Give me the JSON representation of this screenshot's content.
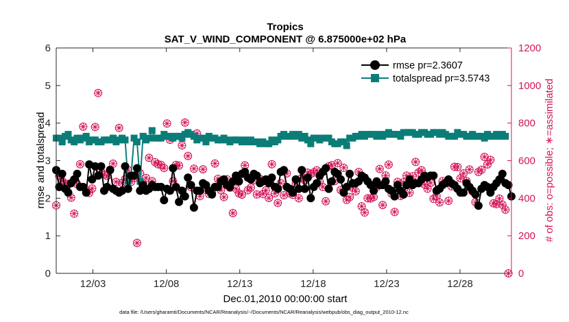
{
  "chart_data": {
    "type": "line",
    "title": "Tropics",
    "subtitle": "SAT_V_WIND_COMPONENT @ 6.875000e+02 hPa",
    "xlabel": "Dec.01,2010 00:00:00 start",
    "ylabel_left": "rmse and totalspread",
    "ylabel_right": "# of obs: o=possible; ∗=assimilated",
    "footer": "data file: /Users/gharamti/Documents/NCAR/Reanalysis/~/Documents/NCAR/Reanalysis/webpub/obs_diag_output_2010-12.nc",
    "xlim": [
      0,
      31
    ],
    "ylim_left": [
      0,
      6
    ],
    "ylim_right": [
      0,
      1200
    ],
    "x_ticks": [
      2.5,
      7.5,
      12.5,
      17.5,
      22.5,
      27.5
    ],
    "x_tick_labels": [
      "12/03",
      "12/08",
      "12/13",
      "12/18",
      "12/23",
      "12/28"
    ],
    "y_left_ticks": [
      "0",
      "1",
      "2",
      "3",
      "4",
      "5",
      "6"
    ],
    "y_right_ticks": [
      "0",
      "200",
      "400",
      "600",
      "800",
      "1000",
      "1200"
    ],
    "colors": {
      "rmse": "#000000",
      "spread": "#0b7d78",
      "obs": "#d4145a"
    },
    "legend": [
      {
        "name": "rmse pr=2.3607",
        "series": "rmse"
      },
      {
        "name": "totalspread pr=3.5743",
        "series": "spread"
      }
    ],
    "series": [
      {
        "name": "rmse",
        "values": [
          2.75,
          2.3,
          2.65,
          2.25,
          2.15,
          2.4,
          2.5,
          2.65,
          2.3,
          2.3,
          2.15,
          2.9,
          2.5,
          2.85,
          2.6,
          2.85,
          2.2,
          2.3,
          2.75,
          2.25,
          2.2,
          2.15,
          2.2,
          2.85,
          2.25,
          2.6,
          2.6,
          2.8,
          2.2,
          2.35,
          2.2,
          2.25,
          2.35,
          2.3,
          2.3,
          2.3,
          1.95,
          2.25,
          2.2,
          2.8,
          2.3,
          1.9,
          2.2,
          2.05,
          2.55,
          2.35,
          1.75,
          2.2,
          2.2,
          2.4,
          2.35,
          2.2,
          2.1,
          2.3,
          2.3,
          2.45,
          2.5,
          2.35,
          2.3,
          2.45,
          2.6,
          2.45,
          2.65,
          2.7,
          2.55,
          2.5,
          2.65,
          2.6,
          2.4,
          2.45,
          2.5,
          2.4,
          2.55,
          2.3,
          2.25,
          2.7,
          2.75,
          2.3,
          2.25,
          2.15,
          2.5,
          2.25,
          2.75,
          2.25,
          2.55,
          2.0,
          2.3,
          2.4,
          2.6,
          2.7,
          2.8,
          2.25,
          2.45,
          2.7,
          2.65,
          2.5,
          2.15,
          2.3,
          2.65,
          2.4,
          2.4,
          2.45,
          2.6,
          2.55,
          2.45,
          2.35,
          2.2,
          2.45,
          2.35,
          2.35,
          2.45,
          2.25,
          2.2,
          2.05,
          2.35,
          2.2,
          2.1,
          2.35,
          2.5,
          2.35,
          2.4,
          2.4,
          2.5,
          2.6,
          2.55,
          2.6,
          2.6,
          2.2,
          2.25,
          2.35,
          2.4,
          2.5,
          2.4,
          2.35,
          2.25,
          2.15,
          2.15,
          2.4,
          2.3,
          2.2,
          2.1,
          1.8,
          2.25,
          2.35,
          2.3,
          2.15,
          2.3,
          2.4,
          2.5,
          2.65,
          2.4,
          2.35,
          2.05
        ]
      },
      {
        "name": "totalspread",
        "values": [
          3.6,
          3.6,
          3.5,
          3.65,
          3.7,
          3.55,
          3.5,
          3.6,
          3.55,
          3.6,
          3.65,
          3.5,
          3.55,
          3.55,
          3.5,
          3.5,
          3.55,
          3.55,
          3.55,
          3.6,
          3.5,
          3.55,
          3.6,
          3.55,
          2.45,
          2.6,
          3.6,
          3.5,
          2.45,
          3.65,
          3.55,
          3.6,
          3.8,
          3.6,
          3.6,
          3.6,
          3.7,
          3.65,
          3.65,
          3.6,
          3.65,
          3.65,
          3.6,
          3.7,
          3.75,
          3.7,
          3.65,
          3.55,
          3.6,
          3.6,
          3.5,
          3.65,
          3.6,
          3.6,
          3.55,
          3.55,
          3.6,
          3.55,
          3.5,
          3.55,
          3.55,
          3.55,
          3.5,
          3.55,
          3.5,
          3.55,
          3.5,
          3.5,
          3.45,
          3.5,
          3.45,
          3.45,
          3.55,
          3.5,
          3.55,
          3.65,
          3.7,
          3.65,
          3.65,
          3.7,
          3.65,
          3.7,
          3.6,
          3.65,
          3.55,
          3.45,
          3.6,
          3.6,
          3.55,
          3.6,
          3.6,
          3.6,
          3.5,
          3.45,
          3.45,
          3.5,
          3.5,
          3.4,
          3.6,
          3.6,
          3.65,
          3.65,
          3.7,
          3.65,
          3.7,
          3.7,
          3.7,
          3.65,
          3.7,
          3.65,
          3.7,
          3.75,
          3.7,
          3.7,
          3.7,
          3.65,
          3.75,
          3.75,
          3.75,
          3.75,
          3.7,
          3.7,
          3.75,
          3.75,
          3.7,
          3.7,
          3.75,
          3.75,
          3.7,
          3.75,
          3.7,
          3.65,
          3.65,
          3.65,
          3.75,
          3.7,
          3.7,
          3.65,
          3.65,
          3.7,
          3.65,
          3.65,
          3.65,
          3.6,
          3.7,
          3.65,
          3.65,
          3.7,
          3.65,
          3.7,
          3.65
        ]
      },
      {
        "name": "obs_count",
        "values": [
          362,
          519,
          492,
          478,
          476,
          403,
          318,
          475,
          581,
          781,
          445,
          428,
          452,
          779,
          960,
          541,
          526,
          519,
          552,
          584,
          487,
          774,
          481,
          501,
          550,
          487,
          508,
          162,
          533,
          479,
          508,
          615,
          491,
          592,
          581,
          577,
          561,
          798,
          711,
          491,
          577,
          574,
          681,
          803,
          625,
          459,
          557,
          745,
          411,
          554,
          446,
          423,
          431,
          585,
          503,
          443,
          406,
          501,
          456,
          321,
          451,
          426,
          419,
          575,
          443,
          457,
          496,
          420,
          503,
          422,
          442,
          401,
          581,
          426,
          375,
          480,
          416,
          532,
          426,
          418,
          477,
          400,
          509,
          495,
          536,
          529,
          537,
          549,
          488,
          460,
          384,
          570,
          576,
          491,
          587,
          444,
          562,
          391,
          406,
          457,
          437,
          540,
          357,
          324,
          400,
          399,
          406,
          459,
          556,
          364,
          521,
          579,
          425,
          327,
          487,
          412,
          485,
          520,
          429,
          517,
          593,
          537,
          549,
          473,
          451,
          482,
          397,
          412,
          378,
          491,
          484,
          386,
          463,
          567,
          566,
          506,
          532,
          491,
          553,
          436,
          379,
          540,
          551,
          620,
          580,
          604,
          373,
          369,
          398,
          365,
          339,
          0
        ]
      }
    ]
  }
}
